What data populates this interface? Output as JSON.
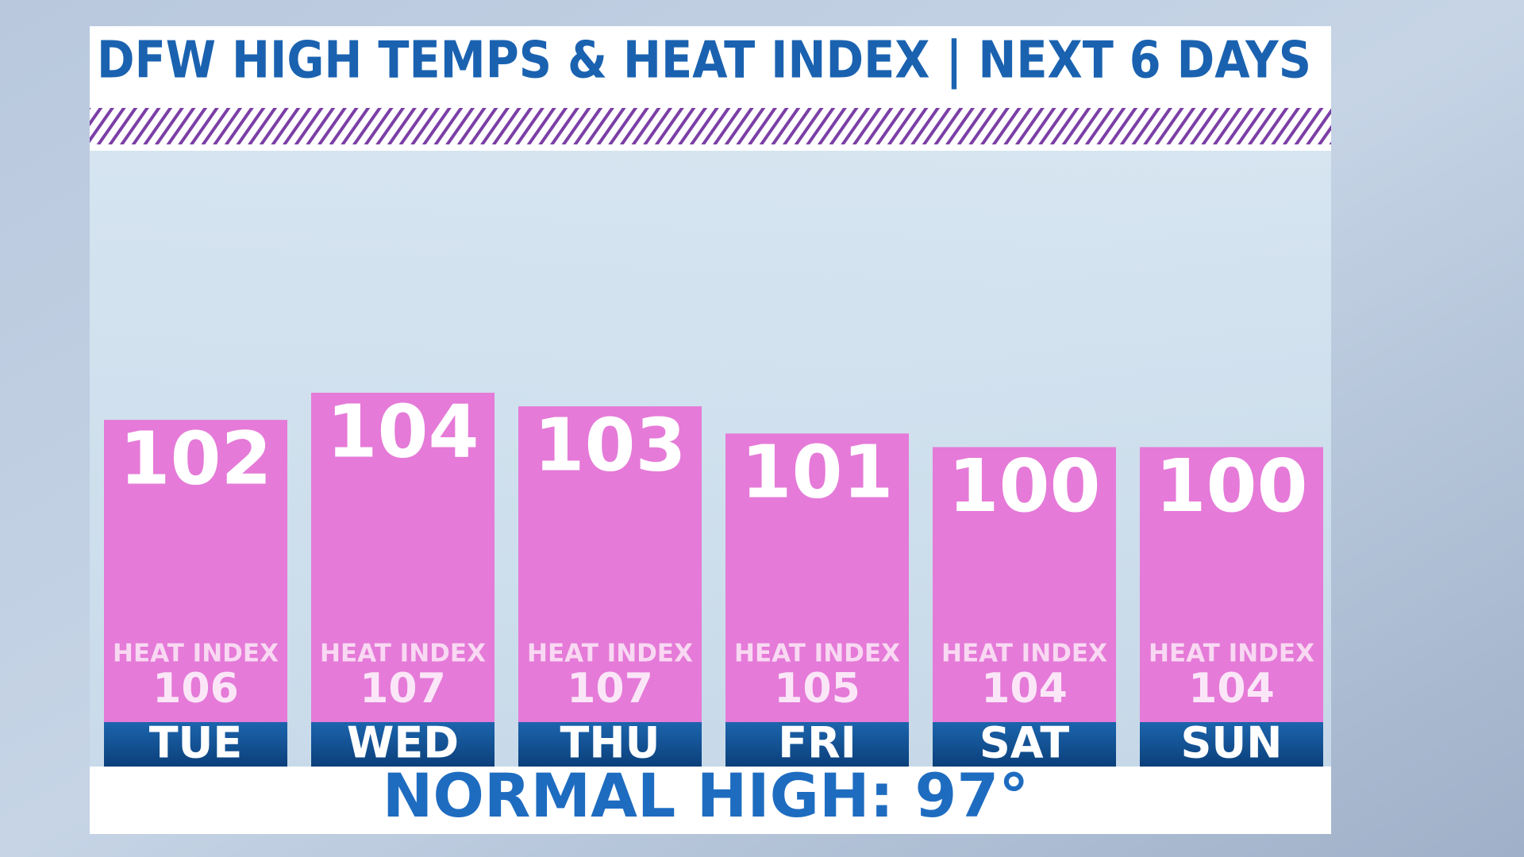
{
  "chart_data": {
    "type": "bar",
    "title": "DFW HIGH TEMPS & HEAT INDEX | NEXT 6 DAYS",
    "categories": [
      "TUE",
      "WED",
      "THU",
      "FRI",
      "SAT",
      "SUN"
    ],
    "values": [
      102,
      104,
      103,
      101,
      100,
      100
    ],
    "color": "#e57ad8",
    "heat_index": {
      "label": "HEAT INDEX",
      "values": [
        106,
        107,
        107,
        105,
        104,
        104
      ]
    },
    "annotation": "NORMAL HIGH: 97°",
    "ylim": [
      76.5,
      121.8
    ]
  }
}
